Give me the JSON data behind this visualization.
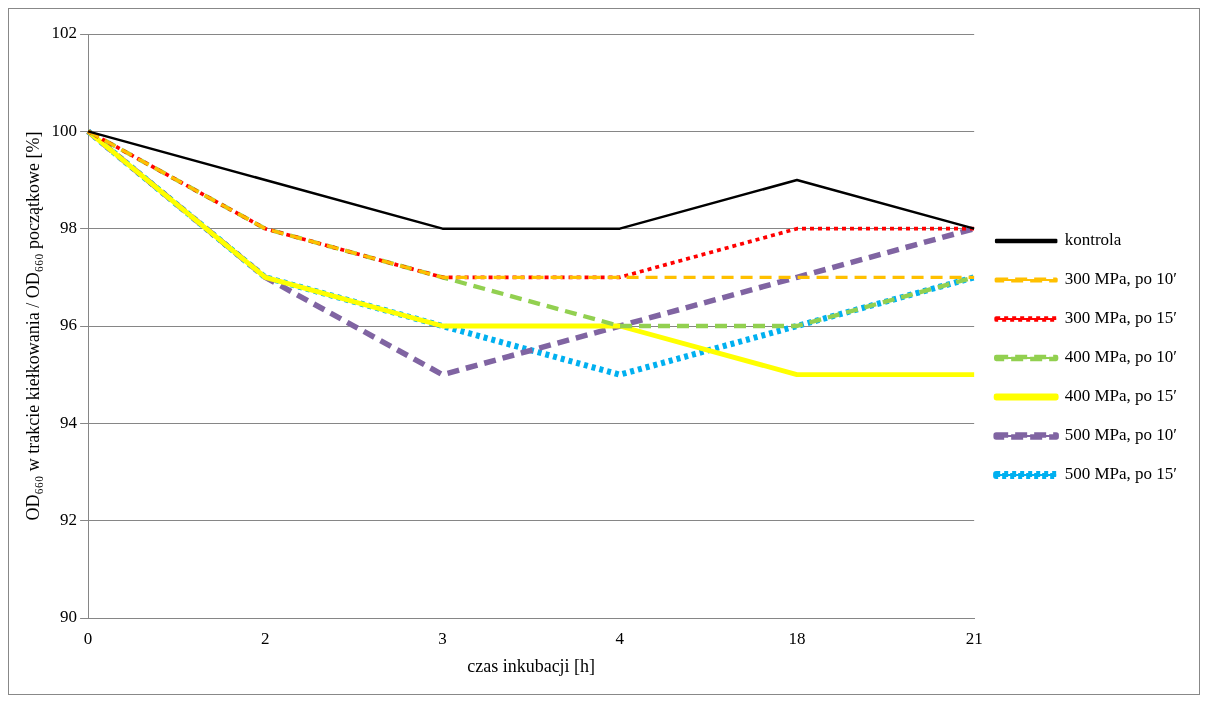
{
  "chart_data": {
    "type": "line",
    "xlabel": "czas inkubacji [h]",
    "ylabel": "OD₆₆₀ w trakcie kiełkowania / OD₆₆₀ początkowe [%]",
    "categories": [
      "0",
      "2",
      "3",
      "4",
      "18",
      "21"
    ],
    "ylim": [
      90,
      102
    ],
    "yticks": [
      90,
      92,
      94,
      96,
      98,
      100,
      102
    ],
    "grid": "y",
    "legend": "right",
    "marker": "none",
    "series": [
      {
        "name": "kontrola",
        "color": "#000000",
        "line_style": "solid",
        "values": [
          100,
          99,
          98,
          98,
          99,
          98
        ]
      },
      {
        "name": "300 MPa, po 10′",
        "color": "#ffc000",
        "line_style": "dashed",
        "values": [
          100,
          98,
          97,
          97,
          97,
          97
        ]
      },
      {
        "name": "300 MPa, po 15′",
        "color": "#ff0000",
        "line_style": "dotted",
        "values": [
          100,
          98,
          97,
          97,
          98,
          98
        ]
      },
      {
        "name": "400 MPa, po 10′",
        "color": "#92d050",
        "line_style": "dashed",
        "values": [
          100,
          98,
          97,
          96,
          96,
          97
        ]
      },
      {
        "name": "400 MPa, po 15′",
        "color": "#ffff00",
        "line_style": "solid",
        "values": [
          100,
          97,
          96,
          96,
          95,
          95
        ]
      },
      {
        "name": "500 MPa, po 10′",
        "color": "#8064a2",
        "line_style": "dashed",
        "values": [
          100,
          97,
          95,
          96,
          97,
          98
        ]
      },
      {
        "name": "500 MPa, po 15′",
        "color": "#00b0f0",
        "line_style": "dotted",
        "values": [
          100,
          97,
          96,
          95,
          96,
          97
        ]
      }
    ]
  }
}
